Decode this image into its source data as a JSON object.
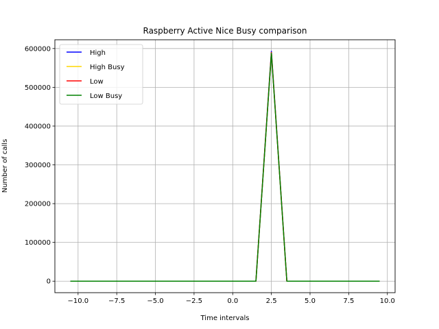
{
  "chart_data": {
    "type": "line",
    "title": "Raspberry Active Nice Busy comparison",
    "xlabel": "Time intervals",
    "ylabel": "Number of calls",
    "xlim": [
      -11.5,
      10.5
    ],
    "ylim": [
      -29650,
      622650
    ],
    "x_ticks": [
      -10.0,
      -7.5,
      -5.0,
      -2.5,
      0.0,
      2.5,
      5.0,
      7.5,
      10.0
    ],
    "x_tick_labels": [
      "−10.0",
      "−7.5",
      "−5.0",
      "−2.5",
      "0.0",
      "2.5",
      "5.0",
      "7.5",
      "10.0"
    ],
    "y_ticks": [
      0,
      100000,
      200000,
      300000,
      400000,
      500000,
      600000
    ],
    "y_tick_labels": [
      "0",
      "100000",
      "200000",
      "300000",
      "400000",
      "500000",
      "600000"
    ],
    "grid": true,
    "legend_position": "top-left",
    "x": [
      -10.5,
      -9.5,
      -8.5,
      -7.5,
      -6.5,
      -5.5,
      -4.5,
      -3.5,
      -2.5,
      -1.5,
      -0.5,
      0.5,
      1.5,
      2.5,
      3.5,
      4.5,
      5.5,
      6.5,
      7.5,
      8.5,
      9.5
    ],
    "series": [
      {
        "name": "High",
        "color": "#0000ff",
        "values": [
          0,
          0,
          0,
          0,
          0,
          0,
          0,
          0,
          0,
          0,
          0,
          0,
          0,
          593000,
          0,
          0,
          0,
          0,
          0,
          0,
          0
        ]
      },
      {
        "name": "High Busy",
        "color": "#ffd700",
        "values": [
          0,
          0,
          0,
          0,
          0,
          0,
          0,
          0,
          0,
          0,
          0,
          0,
          0,
          590000,
          0,
          0,
          0,
          0,
          0,
          0,
          0
        ]
      },
      {
        "name": "Low",
        "color": "#ff0000",
        "values": [
          0,
          0,
          0,
          0,
          0,
          0,
          0,
          0,
          0,
          0,
          0,
          0,
          0,
          590000,
          0,
          0,
          0,
          0,
          0,
          0,
          0
        ]
      },
      {
        "name": "Low Busy",
        "color": "#008000",
        "values": [
          0,
          0,
          0,
          0,
          0,
          0,
          0,
          0,
          0,
          0,
          0,
          0,
          0,
          588000,
          0,
          0,
          0,
          0,
          0,
          0,
          0
        ]
      }
    ]
  }
}
